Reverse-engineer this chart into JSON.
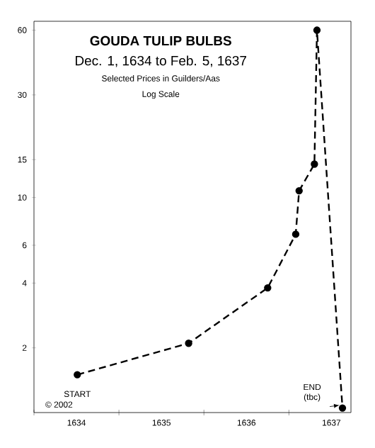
{
  "chart_data": {
    "type": "line",
    "title": "GOUDA TULIP BULBS",
    "subtitle": "Dec. 1, 1634 to Feb. 5, 1637",
    "x": [
      1634.51,
      1635.82,
      1636.75,
      1637.08,
      1637.12,
      1637.3,
      1637.33,
      1637.63
    ],
    "values": [
      1.5,
      2.1,
      3.8,
      6.75,
      10.75,
      14.3,
      60,
      1.05
    ],
    "color": "#000000",
    "marker": "circle",
    "line_style": "dashed",
    "log": "y",
    "xlim": [
      1634,
      1637.73
    ],
    "ylim": [
      1,
      66
    ],
    "xticks": [
      {
        "value": 1634,
        "label": null
      },
      {
        "value": 1635,
        "label": null
      },
      {
        "value": 1636,
        "label": null
      },
      {
        "value": 1637,
        "label": null
      },
      {
        "value": 1634.5,
        "label": "1634"
      },
      {
        "value": 1635.5,
        "label": "1635"
      },
      {
        "value": 1636.5,
        "label": "1636"
      },
      {
        "value": 1637.5,
        "label": "1637"
      }
    ],
    "yticks": [
      2,
      4,
      6,
      10,
      15,
      30,
      60
    ],
    "annotations": [
      {
        "text": "START",
        "x": 1634.51,
        "y": 1.5
      },
      {
        "text": "END (tbc)",
        "x": 1637.63,
        "y": 1.05
      },
      "Selected Prices in Guilders/Aas",
      "Log Scale",
      "© 2002"
    ]
  }
}
